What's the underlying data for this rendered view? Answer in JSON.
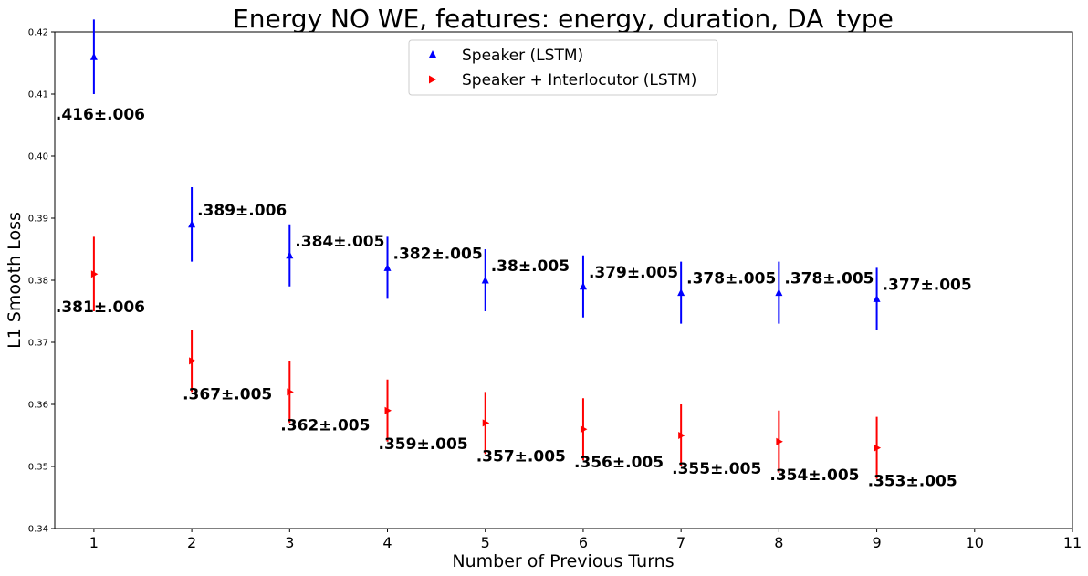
{
  "chart_data": {
    "type": "scatter",
    "title": "Energy NO WE, features: energy, duration, DA_type",
    "xlabel": "Number of Previous Turns",
    "ylabel": "L1 Smooth Loss",
    "xlim": [
      0.6,
      11
    ],
    "ylim": [
      0.34,
      0.42
    ],
    "xticks": [
      "1",
      "2",
      "3",
      "4",
      "5",
      "6",
      "7",
      "8",
      "9",
      "10",
      "11"
    ],
    "yticks": [
      "0.34",
      "0.35",
      "0.36",
      "0.37",
      "0.38",
      "0.39",
      "0.40",
      "0.41",
      "0.42"
    ],
    "legend_position": "top-center",
    "series": [
      {
        "name": "Speaker (LSTM)",
        "color": "#0000ff",
        "marker": "triangle-up",
        "x": [
          1,
          2,
          3,
          4,
          5,
          6,
          7,
          8,
          9
        ],
        "y": [
          0.416,
          0.389,
          0.384,
          0.382,
          0.38,
          0.379,
          0.378,
          0.378,
          0.377
        ],
        "error": [
          0.006,
          0.006,
          0.005,
          0.005,
          0.005,
          0.005,
          0.005,
          0.005,
          0.005
        ],
        "labels": [
          ".416±.006",
          ".389±.006",
          ".384±.005",
          ".382±.005",
          ".38±.005",
          ".379±.005",
          ".378±.005",
          ".378±.005",
          ".377±.005"
        ]
      },
      {
        "name": "Speaker + Interlocutor (LSTM)",
        "color": "#ff0000",
        "marker": "triangle-right",
        "x": [
          1,
          2,
          3,
          4,
          5,
          6,
          7,
          8,
          9
        ],
        "y": [
          0.381,
          0.367,
          0.362,
          0.359,
          0.357,
          0.356,
          0.355,
          0.354,
          0.353
        ],
        "error": [
          0.006,
          0.005,
          0.005,
          0.005,
          0.005,
          0.005,
          0.005,
          0.005,
          0.005
        ],
        "labels": [
          ".381±.006",
          ".367±.005",
          ".362±.005",
          ".359±.005",
          ".357±.005",
          ".356±.005",
          ".355±.005",
          ".354±.005",
          ".353±.005"
        ]
      }
    ]
  }
}
